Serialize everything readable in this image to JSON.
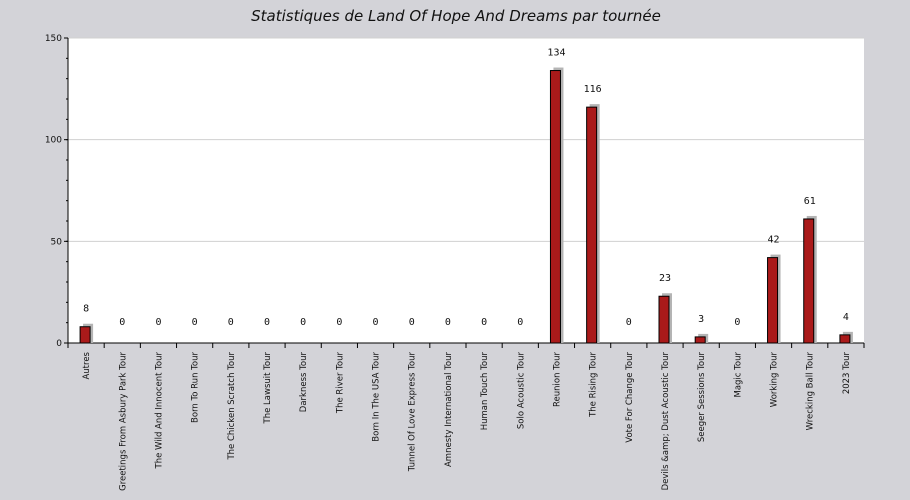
{
  "chart_data": {
    "type": "bar",
    "title": "Statistiques de Land Of Hope And Dreams par tournée",
    "xlabel": "",
    "ylabel": "",
    "ylim": [
      0,
      150
    ],
    "yticks": [
      0,
      50,
      100,
      150
    ],
    "grid": true,
    "legend": "none",
    "categories": [
      "Autres",
      "Greetings From Asbury Park Tour",
      "The Wild And Innocent Tour",
      "Born To Run Tour",
      "The Chicken Scratch Tour",
      "The Lawsuit Tour",
      "Darkness Tour",
      "The River Tour",
      "Born In The USA Tour",
      "Tunnel Of Love Express Tour",
      "Amnesty International Tour",
      "Human Touch Tour",
      "Solo Acoustic Tour",
      "Reunion Tour",
      "The Rising Tour",
      "Vote For Change Tour",
      "Devils &amp; Dust Acoustic Tour",
      "Seeger Sessions Tour",
      "Magic Tour",
      "Working Tour",
      "Wrecking Ball Tour",
      "2023 Tour"
    ],
    "values": [
      8,
      0,
      0,
      0,
      0,
      0,
      0,
      0,
      0,
      0,
      0,
      0,
      0,
      134,
      116,
      0,
      23,
      3,
      0,
      42,
      61,
      4
    ],
    "colors": {
      "bar": "#aa1a1a",
      "shadow": "#b4b4b4",
      "plot_bg": "#ffffff",
      "page_bg": "#d3d3d8",
      "grid": "#d0d0d0"
    }
  }
}
